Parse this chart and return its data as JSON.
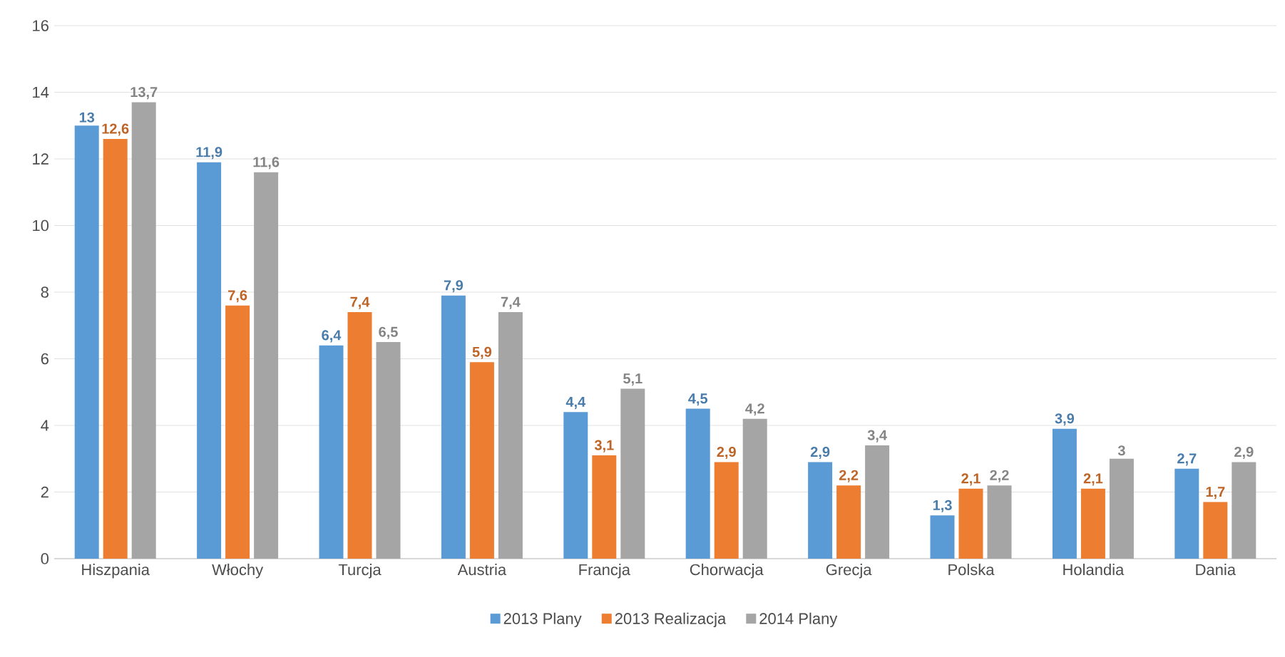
{
  "chart_data": {
    "type": "bar",
    "categories": [
      "Hiszpania",
      "Włochy",
      "Turcja",
      "Austria",
      "Francja",
      "Chorwacja",
      "Grecja",
      "Polska",
      "Holandia",
      "Dania"
    ],
    "series": [
      {
        "name": "2013 Plany",
        "color": "#5b9bd5",
        "values": [
          13,
          11.9,
          6.4,
          7.9,
          4.4,
          4.5,
          2.9,
          1.3,
          3.9,
          2.7
        ],
        "value_labels": [
          "13",
          "11,9",
          "6,4",
          "7,9",
          "4,4",
          "4,5",
          "2,9",
          "1,3",
          "3,9",
          "2,7"
        ]
      },
      {
        "name": "2013 Realizacja",
        "color": "#ed7d31",
        "values": [
          12.6,
          7.6,
          7.4,
          5.9,
          3.1,
          2.9,
          2.2,
          2.1,
          2.1,
          1.7
        ],
        "value_labels": [
          "12,6",
          "7,6",
          "7,4",
          "5,9",
          "3,1",
          "2,9",
          "2,2",
          "2,1",
          "2,1",
          "1,7"
        ]
      },
      {
        "name": "2014 Plany",
        "color": "#a5a5a5",
        "values": [
          13.7,
          11.6,
          6.5,
          7.4,
          5.1,
          4.2,
          3.4,
          2.2,
          3,
          2.9
        ],
        "value_labels": [
          "13,7",
          "11,6",
          "6,5",
          "7,4",
          "5,1",
          "4,2",
          "3,4",
          "2,2",
          "3",
          "2,9"
        ]
      }
    ],
    "ylim": [
      0,
      16
    ],
    "yticks": [
      0,
      2,
      4,
      6,
      8,
      10,
      12,
      14,
      16
    ],
    "grid": "y",
    "legend": "bottom"
  }
}
